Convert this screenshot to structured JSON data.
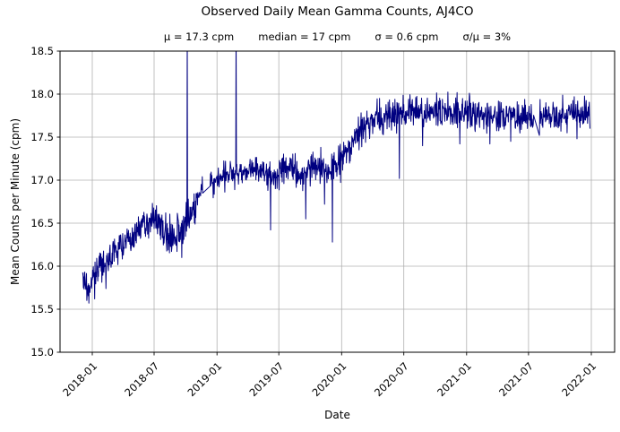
{
  "chart_data": {
    "type": "line",
    "title": "Observed Daily Mean Gamma Counts, AJ4CO",
    "stats": [
      "μ = 17.3 cpm",
      "median = 17 cpm",
      "σ = 0.6 cpm",
      "σ/μ = 3%"
    ],
    "xlabel": "Date",
    "ylabel": "Mean Counts per Minute (cpm)",
    "series_name": "Observed daily mean gamma counts",
    "x_ticks": [
      "2018-01",
      "2018-07",
      "2019-01",
      "2019-07",
      "2020-01",
      "2020-07",
      "2021-01",
      "2021-07",
      "2022-01"
    ],
    "y_ticks": [
      15.0,
      15.5,
      16.0,
      16.5,
      17.0,
      17.5,
      18.0,
      18.5
    ],
    "y_tick_labels": [
      "15.0",
      "15.5",
      "16.0",
      "16.5",
      "17.0",
      "17.5",
      "18.0",
      "18.5"
    ],
    "ylim": [
      15.0,
      18.5
    ],
    "xlim": [
      "2017-09-28",
      "2022-03-10"
    ],
    "grid": true,
    "legend": "none",
    "sampling": "daily",
    "series_start": "2017-12-03",
    "series_end": "2021-12-28",
    "line_color": "#000080",
    "grid_color": "#b0b0b0",
    "background_color": "#ffffff",
    "trend_anchors": [
      [
        "2017-12-03",
        15.8
      ],
      [
        "2017-12-20",
        15.76
      ],
      [
        "2018-01-15",
        15.95
      ],
      [
        "2018-02-15",
        16.08
      ],
      [
        "2018-03-15",
        16.2
      ],
      [
        "2018-04-15",
        16.32
      ],
      [
        "2018-05-15",
        16.42
      ],
      [
        "2018-06-15",
        16.52
      ],
      [
        "2018-07-10",
        16.5
      ],
      [
        "2018-08-05",
        16.38
      ],
      [
        "2018-08-25",
        16.33
      ],
      [
        "2018-09-15",
        16.38
      ],
      [
        "2018-10-10",
        16.55
      ],
      [
        "2018-11-05",
        16.78
      ],
      [
        "2018-11-20",
        16.88
      ],
      [
        "2018-12-12",
        16.96
      ],
      [
        "2019-01-10",
        17.04
      ],
      [
        "2019-02-10",
        17.08
      ],
      [
        "2019-03-15",
        17.08
      ],
      [
        "2019-04-15",
        17.12
      ],
      [
        "2019-05-15",
        17.1
      ],
      [
        "2019-06-10",
        17.02
      ],
      [
        "2019-07-10",
        17.12
      ],
      [
        "2019-08-10",
        17.15
      ],
      [
        "2019-09-10",
        17.06
      ],
      [
        "2019-10-10",
        17.18
      ],
      [
        "2019-11-10",
        17.12
      ],
      [
        "2019-12-10",
        17.12
      ],
      [
        "2020-01-05",
        17.28
      ],
      [
        "2020-02-01",
        17.45
      ],
      [
        "2020-03-01",
        17.62
      ],
      [
        "2020-04-01",
        17.72
      ],
      [
        "2020-06-01",
        17.76
      ],
      [
        "2020-11-01",
        17.8
      ],
      [
        "2021-03-01",
        17.77
      ],
      [
        "2021-06-01",
        17.74
      ],
      [
        "2021-08-15",
        17.72
      ],
      [
        "2021-10-01",
        17.77
      ],
      [
        "2021-12-28",
        17.76
      ]
    ],
    "noise_sigma_anchors": [
      [
        "2017-12-03",
        0.085
      ],
      [
        "2018-06-01",
        0.075
      ],
      [
        "2018-08-01",
        0.115
      ],
      [
        "2018-10-01",
        0.1
      ],
      [
        "2019-01-01",
        0.085
      ],
      [
        "2019-04-01",
        0.075
      ],
      [
        "2019-08-01",
        0.09
      ],
      [
        "2019-10-15",
        0.11
      ],
      [
        "2019-12-15",
        0.125
      ],
      [
        "2020-01-15",
        0.1
      ],
      [
        "2020-04-01",
        0.09
      ],
      [
        "2021-01-01",
        0.095
      ],
      [
        "2021-12-28",
        0.09
      ]
    ],
    "anomalies": [
      [
        "2017-12-22",
        15.57
      ],
      [
        "2018-01-08",
        15.62
      ],
      [
        "2018-02-10",
        15.74
      ],
      [
        "2018-09-20",
        16.1
      ],
      [
        "2018-10-06",
        18.8
      ],
      [
        "2019-02-26",
        18.8
      ],
      [
        "2019-06-07",
        16.42
      ],
      [
        "2019-09-18",
        16.55
      ],
      [
        "2019-11-12",
        16.72
      ],
      [
        "2019-12-05",
        16.28
      ],
      [
        "2020-06-18",
        17.02
      ],
      [
        "2020-08-25",
        17.4
      ],
      [
        "2020-12-12",
        17.42
      ],
      [
        "2021-03-10",
        17.42
      ],
      [
        "2021-05-10",
        17.45
      ],
      [
        "2021-08-02",
        17.52
      ],
      [
        "2021-11-20",
        17.48
      ]
    ],
    "clipped_spikes": [
      "2018-10-06",
      "2019-02-26"
    ],
    "gaps": [
      [
        "2018-11-21",
        "2018-12-11"
      ],
      [
        "2021-07-17",
        "2021-08-01"
      ]
    ]
  }
}
